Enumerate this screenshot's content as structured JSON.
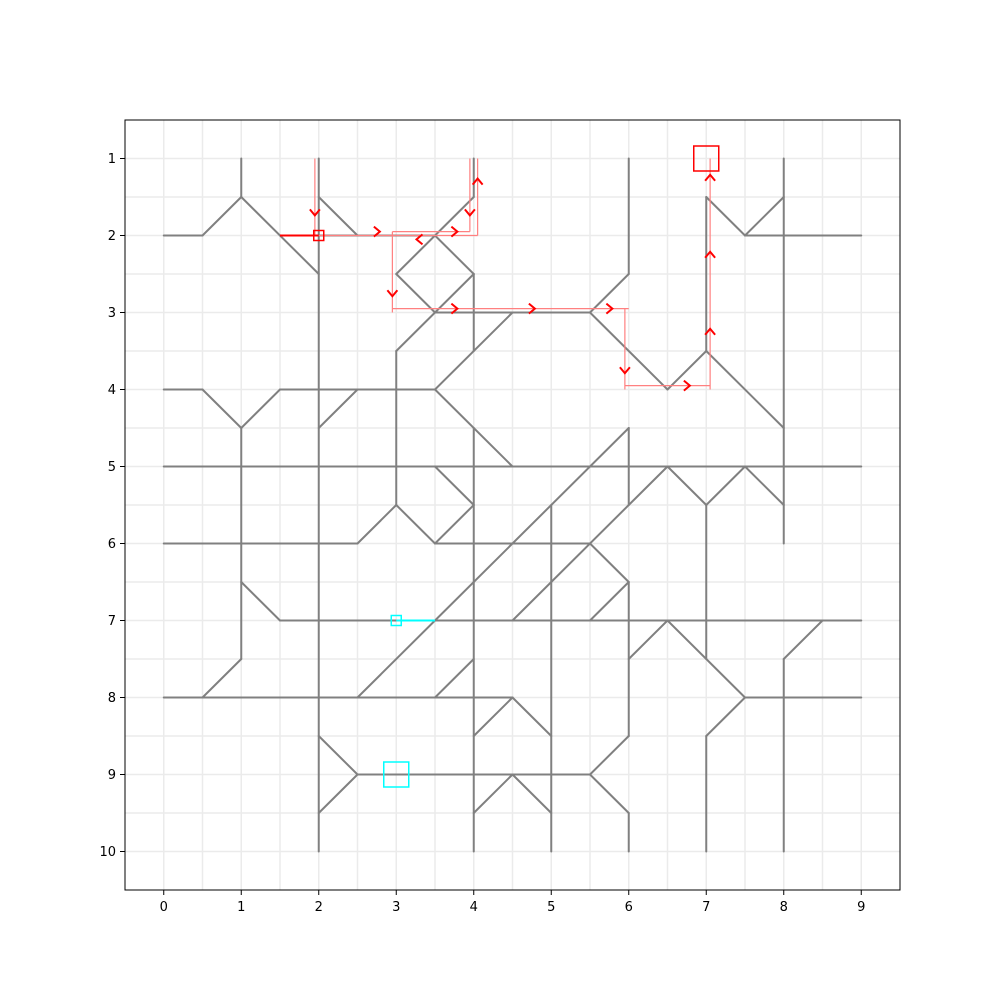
{
  "axes": {
    "x_ticks": [
      "0",
      "1",
      "2",
      "3",
      "4",
      "5",
      "6",
      "7",
      "8",
      "9"
    ],
    "y_ticks": [
      "1",
      "2",
      "3",
      "4",
      "5",
      "6",
      "7",
      "8",
      "9",
      "10"
    ],
    "xlim": [
      -0.5,
      9.5
    ],
    "ylim": [
      10.5,
      0.5
    ],
    "grid": "minor-half-units"
  },
  "colors": {
    "network": "#808080",
    "grid": "#ebebeb",
    "agent_red": "#ff0000",
    "trail_red": "#ff8080",
    "agent_cyan": "#00ffff"
  },
  "network_segments": [
    [
      [
        0,
        2
      ],
      [
        0.5,
        2
      ]
    ],
    [
      [
        0.5,
        2
      ],
      [
        1,
        1.5
      ]
    ],
    [
      [
        1,
        1.5
      ],
      [
        1,
        1
      ]
    ],
    [
      [
        1,
        1.5
      ],
      [
        2,
        2.5
      ]
    ],
    [
      [
        1.5,
        2
      ],
      [
        2.5,
        2
      ]
    ],
    [
      [
        2,
        1
      ],
      [
        2,
        10
      ]
    ],
    [
      [
        2,
        1.5
      ],
      [
        2.5,
        2
      ]
    ],
    [
      [
        2.5,
        2
      ],
      [
        3.5,
        2
      ]
    ],
    [
      [
        3.5,
        2
      ],
      [
        4,
        1.5
      ]
    ],
    [
      [
        4,
        1.5
      ],
      [
        4,
        1
      ]
    ],
    [
      [
        3.5,
        2
      ],
      [
        3,
        2.5
      ]
    ],
    [
      [
        3,
        2.5
      ],
      [
        3.5,
        3
      ]
    ],
    [
      [
        3.5,
        3
      ],
      [
        4,
        2.5
      ]
    ],
    [
      [
        4,
        2.5
      ],
      [
        3.5,
        2
      ]
    ],
    [
      [
        4,
        2.5
      ],
      [
        4,
        3.5
      ]
    ],
    [
      [
        3.5,
        3
      ],
      [
        5.5,
        3
      ]
    ],
    [
      [
        5.5,
        3
      ],
      [
        6,
        2.5
      ]
    ],
    [
      [
        6,
        2.5
      ],
      [
        6,
        1
      ]
    ],
    [
      [
        5.5,
        3
      ],
      [
        6.5,
        4
      ]
    ],
    [
      [
        6.5,
        4
      ],
      [
        7,
        3.5
      ]
    ],
    [
      [
        7,
        3.5
      ],
      [
        7,
        1.5
      ]
    ],
    [
      [
        7,
        1.5
      ],
      [
        7.5,
        2
      ]
    ],
    [
      [
        7.5,
        2
      ],
      [
        8,
        1.5
      ]
    ],
    [
      [
        8,
        1
      ],
      [
        8,
        6
      ]
    ],
    [
      [
        7.5,
        2
      ],
      [
        9,
        2
      ]
    ],
    [
      [
        7,
        3.5
      ],
      [
        8,
        4.5
      ]
    ],
    [
      [
        3,
        3.5
      ],
      [
        3.5,
        3
      ]
    ],
    [
      [
        3,
        3.5
      ],
      [
        3,
        5.5
      ]
    ],
    [
      [
        0,
        4
      ],
      [
        0.5,
        4
      ]
    ],
    [
      [
        0.5,
        4
      ],
      [
        1,
        4.5
      ]
    ],
    [
      [
        1,
        4.5
      ],
      [
        1.5,
        4
      ]
    ],
    [
      [
        1.5,
        4
      ],
      [
        3.5,
        4
      ]
    ],
    [
      [
        2.5,
        4
      ],
      [
        2,
        4.5
      ]
    ],
    [
      [
        3.5,
        4
      ],
      [
        4.5,
        3
      ]
    ],
    [
      [
        3.5,
        4
      ],
      [
        4.5,
        5
      ]
    ],
    [
      [
        1,
        4.5
      ],
      [
        1,
        7.5
      ]
    ],
    [
      [
        0,
        5
      ],
      [
        9,
        5
      ]
    ],
    [
      [
        6,
        4.5
      ],
      [
        6,
        5.5
      ]
    ],
    [
      [
        6,
        4.5
      ],
      [
        3.5,
        7
      ]
    ],
    [
      [
        6.5,
        5
      ],
      [
        7,
        5.5
      ]
    ],
    [
      [
        7,
        5.5
      ],
      [
        7.5,
        5
      ]
    ],
    [
      [
        7.5,
        5
      ],
      [
        8,
        5.5
      ]
    ],
    [
      [
        6.5,
        5
      ],
      [
        4.5,
        7
      ]
    ],
    [
      [
        7,
        5.5
      ],
      [
        7,
        7.5
      ]
    ],
    [
      [
        3.5,
        5
      ],
      [
        4,
        5.5
      ]
    ],
    [
      [
        4,
        5.5
      ],
      [
        3.5,
        6
      ]
    ],
    [
      [
        3.5,
        6
      ],
      [
        5.5,
        6
      ]
    ],
    [
      [
        3,
        5.5
      ],
      [
        3.5,
        6
      ]
    ],
    [
      [
        3,
        5.5
      ],
      [
        2.5,
        6
      ]
    ],
    [
      [
        0,
        6
      ],
      [
        2.5,
        6
      ]
    ],
    [
      [
        4,
        4.5
      ],
      [
        4,
        10
      ]
    ],
    [
      [
        5,
        5.5
      ],
      [
        5,
        10
      ]
    ],
    [
      [
        5.5,
        6
      ],
      [
        6,
        6.5
      ]
    ],
    [
      [
        6,
        6.5
      ],
      [
        5.5,
        7
      ]
    ],
    [
      [
        6,
        6.5
      ],
      [
        6,
        8.5
      ]
    ],
    [
      [
        6,
        7.5
      ],
      [
        6.5,
        7
      ]
    ],
    [
      [
        6.5,
        7
      ],
      [
        7.5,
        8
      ]
    ],
    [
      [
        7.5,
        8
      ],
      [
        9,
        8
      ]
    ],
    [
      [
        7.5,
        8
      ],
      [
        7,
        8.5
      ]
    ],
    [
      [
        7,
        8.5
      ],
      [
        7,
        10
      ]
    ],
    [
      [
        8,
        7.5
      ],
      [
        8.5,
        7
      ]
    ],
    [
      [
        8,
        7.5
      ],
      [
        8,
        10
      ]
    ],
    [
      [
        1,
        6.5
      ],
      [
        1.5,
        7
      ]
    ],
    [
      [
        1.5,
        7
      ],
      [
        9,
        7
      ]
    ],
    [
      [
        1,
        7.5
      ],
      [
        0.5,
        8
      ]
    ],
    [
      [
        0,
        8
      ],
      [
        4.5,
        8
      ]
    ],
    [
      [
        3.5,
        7
      ],
      [
        2.5,
        8
      ]
    ],
    [
      [
        3.5,
        8
      ],
      [
        4,
        7.5
      ]
    ],
    [
      [
        4,
        8.5
      ],
      [
        4.5,
        8
      ]
    ],
    [
      [
        4.5,
        8
      ],
      [
        5,
        8.5
      ]
    ],
    [
      [
        2,
        8.5
      ],
      [
        2.5,
        9
      ]
    ],
    [
      [
        2.5,
        9
      ],
      [
        2,
        9.5
      ]
    ],
    [
      [
        2.5,
        9
      ],
      [
        5.5,
        9
      ]
    ],
    [
      [
        5.5,
        9
      ],
      [
        6,
        8.5
      ]
    ],
    [
      [
        5.5,
        9
      ],
      [
        6,
        9.5
      ]
    ],
    [
      [
        6,
        9.5
      ],
      [
        6,
        10
      ]
    ],
    [
      [
        4,
        9.5
      ],
      [
        4.5,
        9
      ]
    ],
    [
      [
        4.5,
        9
      ],
      [
        5,
        9.5
      ]
    ]
  ],
  "red_trail": [
    [
      [
        1.95,
        1
      ],
      [
        1.95,
        2
      ]
    ],
    [
      [
        1.95,
        2
      ],
      [
        4.05,
        2
      ]
    ],
    [
      [
        4.05,
        2
      ],
      [
        4.05,
        1
      ]
    ],
    [
      [
        3.95,
        1
      ],
      [
        3.95,
        1.95
      ]
    ],
    [
      [
        3.95,
        1.95
      ],
      [
        2.95,
        1.95
      ]
    ],
    [
      [
        2.95,
        1.95
      ],
      [
        2.95,
        3
      ]
    ],
    [
      [
        2.95,
        2.95
      ],
      [
        6,
        2.95
      ]
    ],
    [
      [
        5.95,
        2.95
      ],
      [
        5.95,
        4
      ]
    ],
    [
      [
        5.95,
        3.95
      ],
      [
        7.05,
        3.95
      ]
    ],
    [
      [
        7.05,
        4
      ],
      [
        7.05,
        1
      ]
    ]
  ],
  "red_arrows": [
    {
      "x": 1.95,
      "y": 1.7,
      "dir": "down"
    },
    {
      "x": 2.75,
      "y": 1.95,
      "dir": "right"
    },
    {
      "x": 3.75,
      "y": 1.95,
      "dir": "right"
    },
    {
      "x": 3.3,
      "y": 2.05,
      "dir": "left"
    },
    {
      "x": 3.95,
      "y": 1.7,
      "dir": "down"
    },
    {
      "x": 4.05,
      "y": 1.3,
      "dir": "up"
    },
    {
      "x": 2.95,
      "y": 2.75,
      "dir": "down"
    },
    {
      "x": 3.75,
      "y": 2.95,
      "dir": "right"
    },
    {
      "x": 4.75,
      "y": 2.95,
      "dir": "right"
    },
    {
      "x": 5.75,
      "y": 2.95,
      "dir": "right"
    },
    {
      "x": 5.95,
      "y": 3.75,
      "dir": "down"
    },
    {
      "x": 6.75,
      "y": 3.95,
      "dir": "right"
    },
    {
      "x": 7.05,
      "y": 3.25,
      "dir": "up"
    },
    {
      "x": 7.05,
      "y": 2.25,
      "dir": "up"
    },
    {
      "x": 7.05,
      "y": 1.25,
      "dir": "up"
    }
  ],
  "red_agent": {
    "x": 2,
    "y": 2,
    "tail": [
      [
        1.5,
        2
      ],
      [
        2,
        2
      ]
    ]
  },
  "red_goal": {
    "x": 7,
    "y": 1
  },
  "cyan_agent": {
    "x": 3,
    "y": 7,
    "tail": [
      [
        3,
        7
      ],
      [
        3.5,
        7
      ]
    ]
  },
  "cyan_goal": {
    "x": 3,
    "y": 9
  }
}
